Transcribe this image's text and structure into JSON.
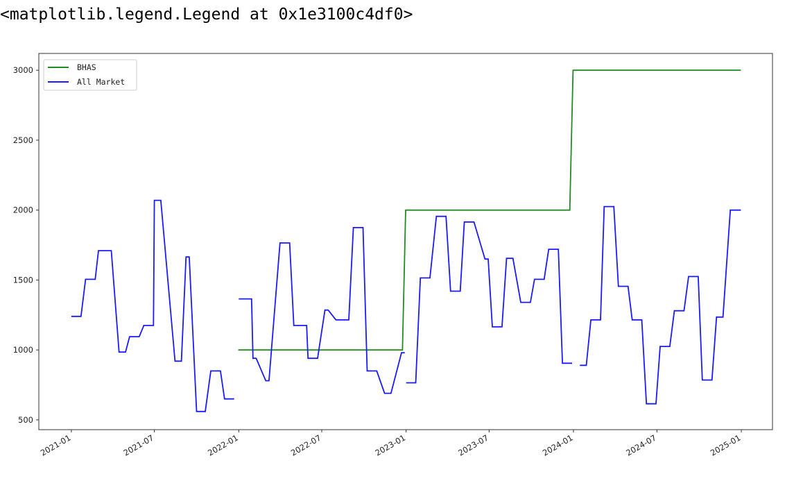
{
  "output_text": "<matplotlib.legend.Legend at 0x1e3100c4df0>",
  "colors": {
    "bhas": "#228b22",
    "all_market": "#1a1aff",
    "axes": "#333333"
  },
  "chart_data": {
    "type": "line",
    "title": "",
    "xlabel": "",
    "ylabel": "",
    "grid": false,
    "legend_position": "top-left",
    "xlim": [
      "2020-10-22",
      "2025-03-10"
    ],
    "ylim": [
      430,
      3120
    ],
    "xticks": [
      {
        "date": "2021-01-01",
        "label": "2021-01"
      },
      {
        "date": "2021-07-01",
        "label": "2021-07"
      },
      {
        "date": "2022-01-01",
        "label": "2022-01"
      },
      {
        "date": "2022-07-01",
        "label": "2022-07"
      },
      {
        "date": "2023-01-01",
        "label": "2023-01"
      },
      {
        "date": "2023-07-01",
        "label": "2023-07"
      },
      {
        "date": "2024-01-01",
        "label": "2024-01"
      },
      {
        "date": "2024-07-01",
        "label": "2024-07"
      },
      {
        "date": "2025-01-01",
        "label": "2025-01"
      }
    ],
    "yticks": [
      500,
      1000,
      1500,
      2000,
      2500,
      3000
    ],
    "series": [
      {
        "name": "BHAS",
        "color": "#228b22",
        "segments": [
          [
            [
              "2021-12-31",
              1000
            ],
            [
              "2022-12-24",
              1000
            ],
            [
              "2022-12-31",
              2000
            ],
            [
              "2023-12-24",
              2000
            ],
            [
              "2023-12-31",
              3000
            ],
            [
              "2024-12-31",
              3000
            ]
          ]
        ]
      },
      {
        "name": "All Market",
        "color": "#1a1aff",
        "segments": [
          [
            [
              "2021-01-01",
              1240
            ],
            [
              "2021-01-22",
              1240
            ],
            [
              "2021-02-01",
              1505
            ],
            [
              "2021-02-22",
              1505
            ],
            [
              "2021-03-01",
              1710
            ],
            [
              "2021-03-29",
              1710
            ],
            [
              "2021-04-15",
              985
            ],
            [
              "2021-04-29",
              985
            ],
            [
              "2021-05-08",
              1095
            ],
            [
              "2021-05-29",
              1095
            ],
            [
              "2021-06-08",
              1175
            ],
            [
              "2021-06-29",
              1175
            ],
            [
              "2021-07-01",
              2070
            ],
            [
              "2021-07-15",
              2070
            ],
            [
              "2021-08-15",
              920
            ],
            [
              "2021-08-29",
              920
            ],
            [
              "2021-09-08",
              1665
            ],
            [
              "2021-09-15",
              1665
            ],
            [
              "2021-10-01",
              560
            ],
            [
              "2021-10-20",
              560
            ],
            [
              "2021-11-01",
              850
            ],
            [
              "2021-11-22",
              850
            ],
            [
              "2021-12-01",
              650
            ],
            [
              "2021-12-22",
              650
            ]
          ],
          [
            [
              "2022-01-01",
              1365
            ],
            [
              "2022-01-29",
              1365
            ],
            [
              "2022-02-01",
              940
            ],
            [
              "2022-02-08",
              940
            ],
            [
              "2022-03-01",
              780
            ],
            [
              "2022-03-08",
              780
            ],
            [
              "2022-04-01",
              1765
            ],
            [
              "2022-04-22",
              1765
            ],
            [
              "2022-05-01",
              1175
            ],
            [
              "2022-05-29",
              1175
            ],
            [
              "2022-06-01",
              940
            ],
            [
              "2022-06-22",
              940
            ],
            [
              "2022-07-08",
              1285
            ],
            [
              "2022-07-15",
              1285
            ],
            [
              "2022-08-01",
              1215
            ],
            [
              "2022-08-29",
              1215
            ],
            [
              "2022-09-08",
              1875
            ],
            [
              "2022-09-29",
              1875
            ],
            [
              "2022-10-08",
              850
            ],
            [
              "2022-10-29",
              850
            ],
            [
              "2022-11-15",
              690
            ],
            [
              "2022-11-29",
              690
            ],
            [
              "2022-12-22",
              980
            ],
            [
              "2022-12-29",
              980
            ]
          ],
          [
            [
              "2023-01-01",
              765
            ],
            [
              "2023-01-22",
              765
            ],
            [
              "2023-02-01",
              1515
            ],
            [
              "2023-02-22",
              1515
            ],
            [
              "2023-03-08",
              1955
            ],
            [
              "2023-03-29",
              1955
            ],
            [
              "2023-04-08",
              1420
            ],
            [
              "2023-04-29",
              1420
            ],
            [
              "2023-05-08",
              1915
            ],
            [
              "2023-05-29",
              1915
            ],
            [
              "2023-06-22",
              1650
            ],
            [
              "2023-06-29",
              1650
            ],
            [
              "2023-07-08",
              1165
            ],
            [
              "2023-07-29",
              1165
            ],
            [
              "2023-08-08",
              1655
            ],
            [
              "2023-08-22",
              1655
            ],
            [
              "2023-09-08",
              1340
            ],
            [
              "2023-09-29",
              1340
            ],
            [
              "2023-10-08",
              1505
            ],
            [
              "2023-10-29",
              1505
            ],
            [
              "2023-11-08",
              1720
            ],
            [
              "2023-11-29",
              1720
            ],
            [
              "2023-12-08",
              905
            ],
            [
              "2023-12-29",
              905
            ]
          ],
          [
            [
              "2024-01-15",
              890
            ],
            [
              "2024-01-29",
              890
            ],
            [
              "2024-02-08",
              1215
            ],
            [
              "2024-02-29",
              1215
            ],
            [
              "2024-03-08",
              2025
            ],
            [
              "2024-03-29",
              2025
            ],
            [
              "2024-04-08",
              1455
            ],
            [
              "2024-04-29",
              1455
            ],
            [
              "2024-05-08",
              1215
            ],
            [
              "2024-05-29",
              1215
            ],
            [
              "2024-06-08",
              615
            ],
            [
              "2024-06-29",
              615
            ],
            [
              "2024-07-08",
              1025
            ],
            [
              "2024-07-29",
              1025
            ],
            [
              "2024-08-08",
              1280
            ],
            [
              "2024-08-29",
              1280
            ],
            [
              "2024-09-08",
              1525
            ],
            [
              "2024-09-29",
              1525
            ],
            [
              "2024-10-08",
              785
            ],
            [
              "2024-10-29",
              785
            ],
            [
              "2024-11-08",
              1235
            ],
            [
              "2024-11-22",
              1235
            ],
            [
              "2024-12-08",
              2000
            ],
            [
              "2024-12-31",
              2000
            ]
          ]
        ]
      }
    ]
  }
}
